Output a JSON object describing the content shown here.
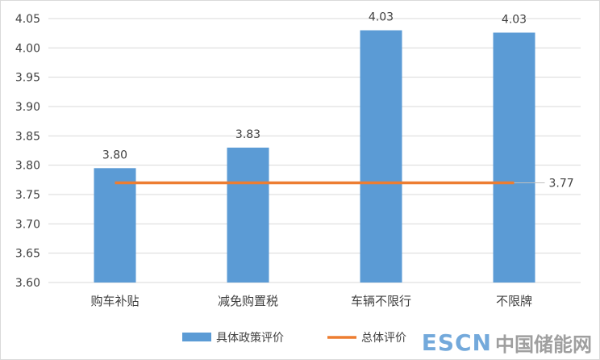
{
  "chart_data": {
    "type": "bar",
    "categories": [
      "购车补贴",
      "减免购置税",
      "车辆不限行",
      "不限牌"
    ],
    "series": [
      {
        "name": "具体政策评价",
        "type": "bar",
        "values": [
          3.795,
          3.83,
          4.03,
          4.026
        ],
        "labels": [
          "3.80",
          "3.83",
          "4.03",
          "4.03"
        ],
        "color": "#5b9bd5"
      },
      {
        "name": "总体评价",
        "type": "line",
        "value": 3.77,
        "label": "3.77",
        "color": "#ed7d31"
      }
    ],
    "yticks": [
      "3.60",
      "3.65",
      "3.70",
      "3.75",
      "3.80",
      "3.85",
      "3.90",
      "3.95",
      "4.00",
      "4.05"
    ],
    "ylim": [
      3.6,
      4.05
    ],
    "grid": true,
    "legend": "bottom"
  },
  "watermark": {
    "latin": "ESCN",
    "cjk": "中国储能网"
  }
}
